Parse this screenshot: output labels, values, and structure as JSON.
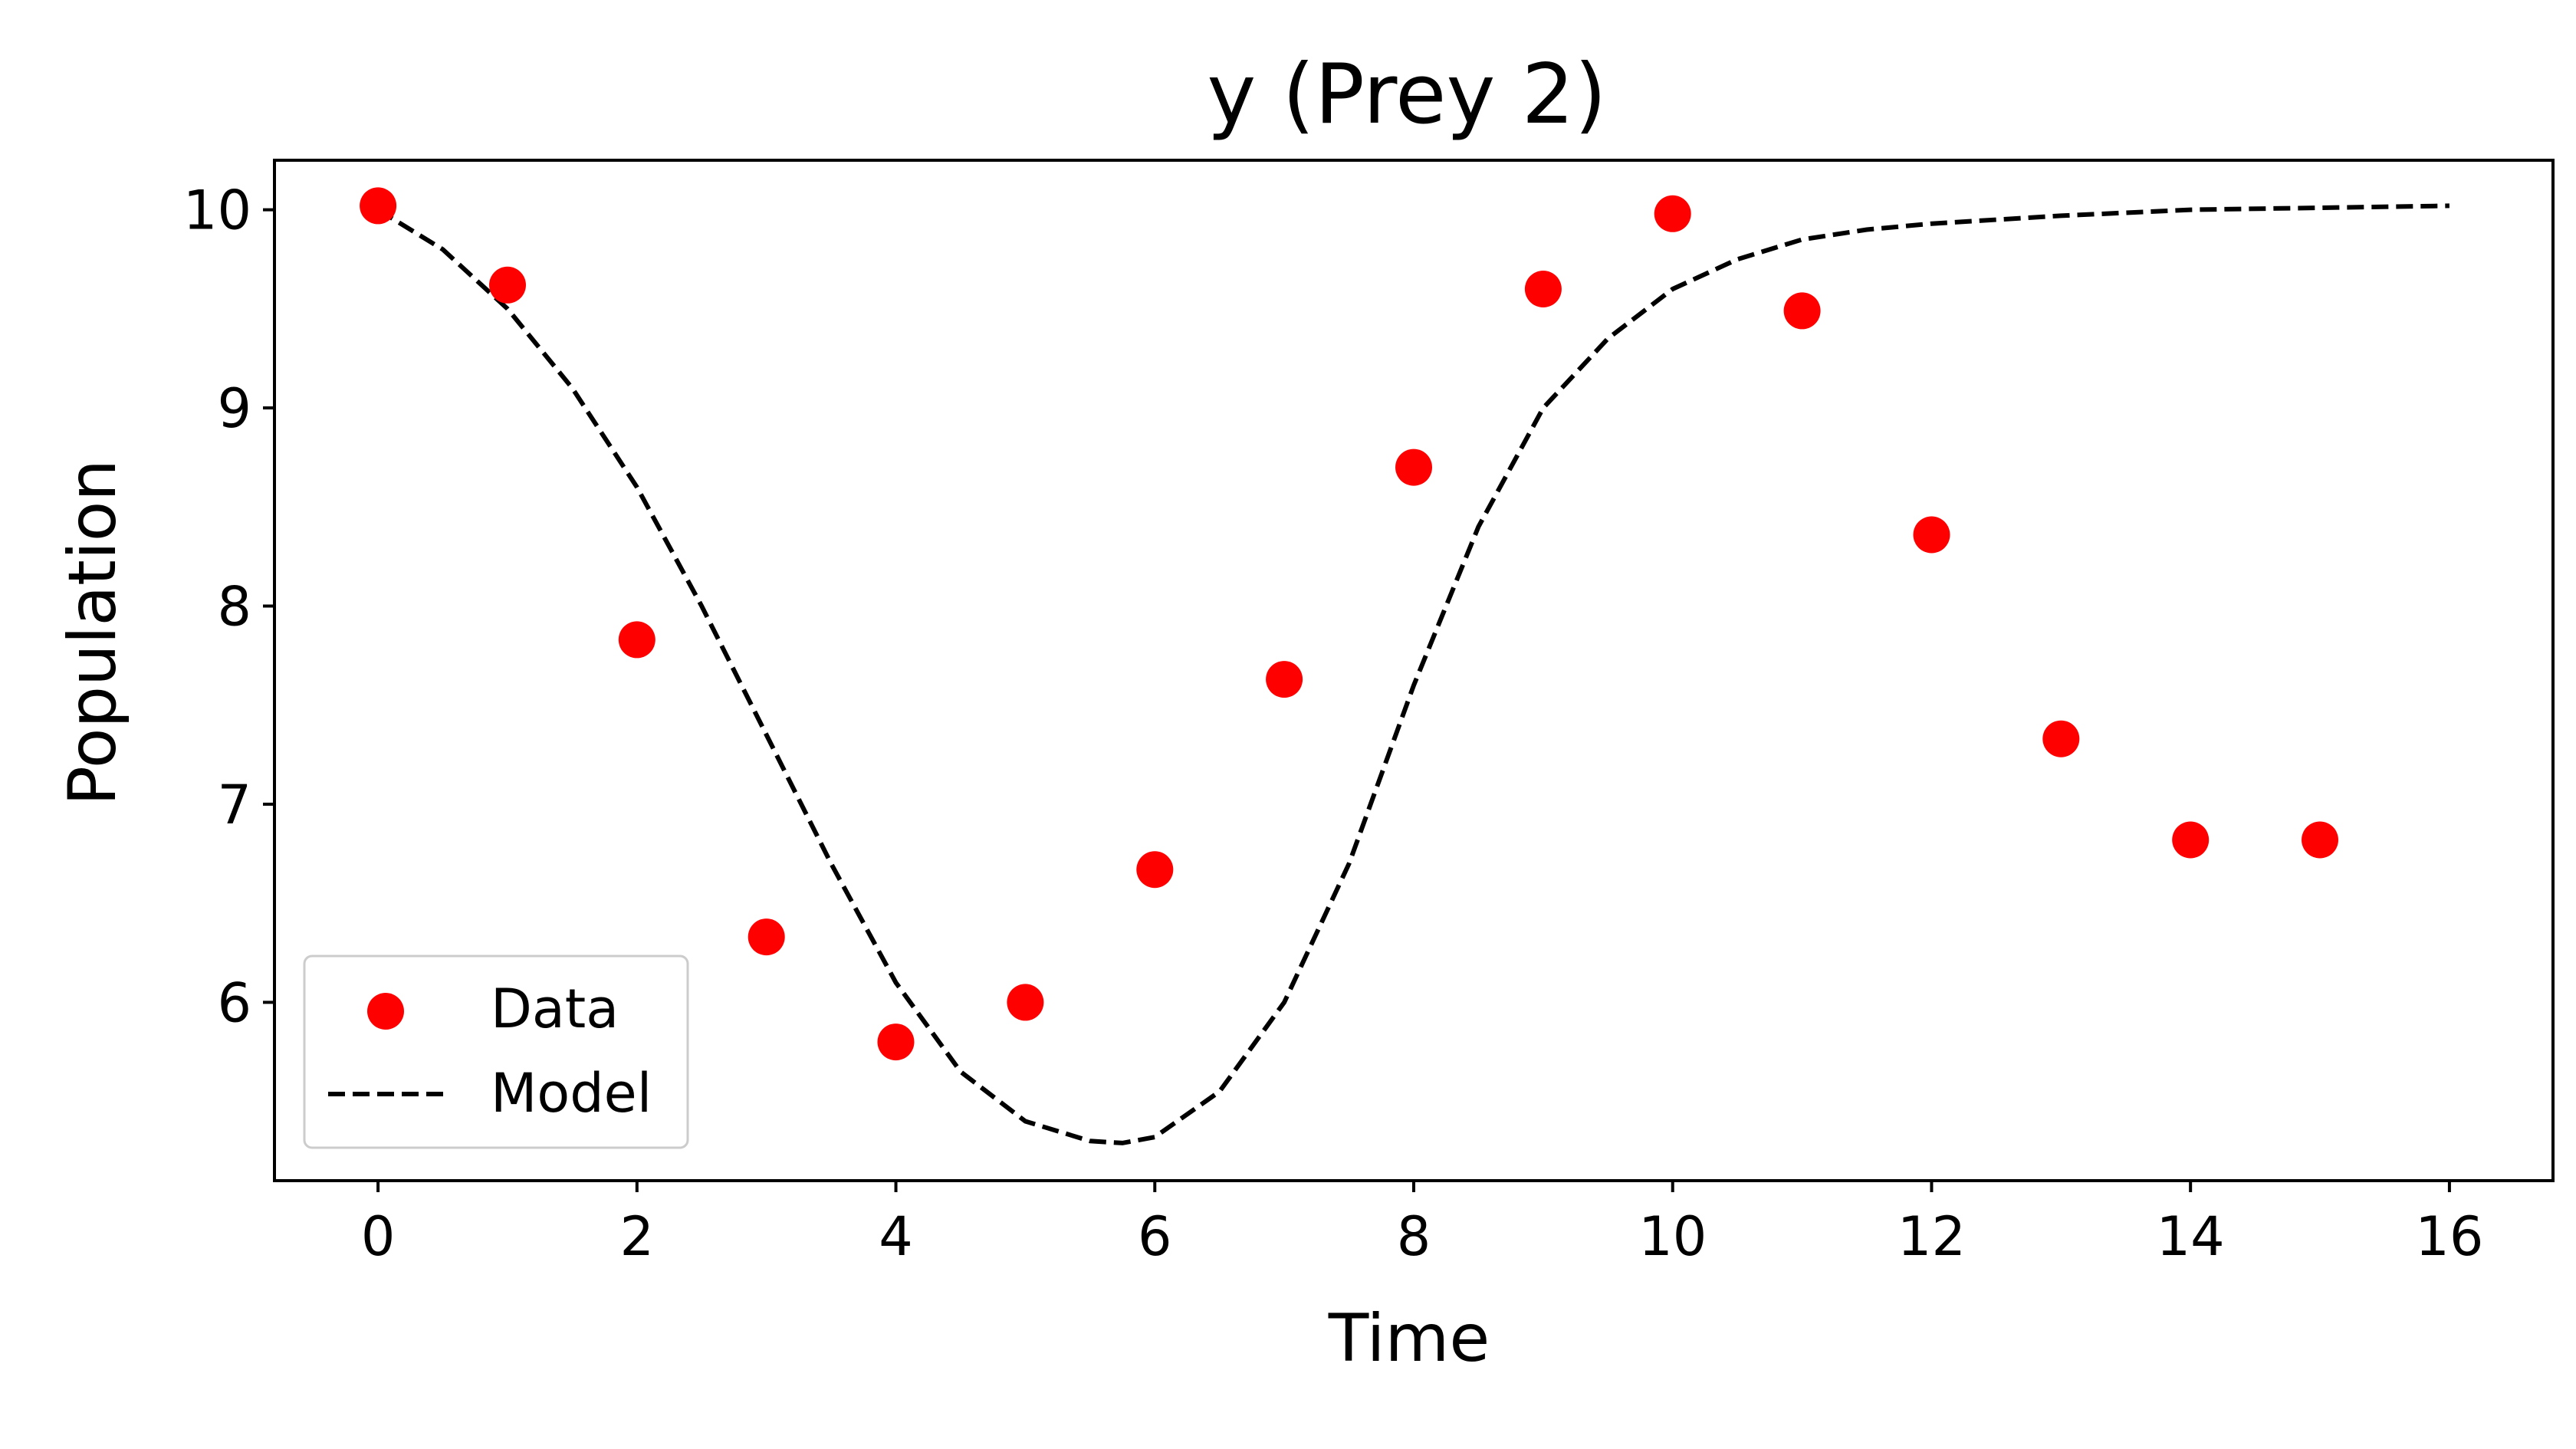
{
  "chart_data": {
    "type": "scatter",
    "title": "y (Prey 2)",
    "xlabel": "Time",
    "ylabel": "Population",
    "xlim": [
      -0.8,
      16.8
    ],
    "ylim": [
      5.1,
      10.25
    ],
    "xticks": [
      0,
      2,
      4,
      6,
      8,
      10,
      12,
      14,
      16
    ],
    "yticks": [
      6,
      7,
      8,
      9,
      10
    ],
    "grid": false,
    "legend_position": "lower-left",
    "series": [
      {
        "name": "Data",
        "kind": "scatter",
        "color": "#ff0000",
        "x": [
          0,
          1,
          2,
          3,
          4,
          5,
          6,
          7,
          8,
          9,
          10,
          11,
          12,
          13,
          14,
          15
        ],
        "y": [
          10.02,
          9.62,
          7.83,
          6.33,
          5.8,
          6.0,
          6.67,
          7.63,
          8.7,
          9.6,
          9.98,
          9.49,
          8.36,
          7.33,
          6.82,
          6.82
        ]
      },
      {
        "name": "Model",
        "kind": "line",
        "style": "dashed",
        "color": "#000000",
        "x": [
          0,
          0.5,
          1,
          1.5,
          2,
          2.5,
          3,
          3.5,
          4,
          4.5,
          5,
          5.5,
          5.75,
          6,
          6.5,
          7,
          7.5,
          8,
          8.5,
          9,
          9.5,
          10,
          10.5,
          11,
          11.5,
          12,
          13,
          14,
          15,
          16
        ],
        "y": [
          10.0,
          9.8,
          9.5,
          9.1,
          8.6,
          8.0,
          7.35,
          6.7,
          6.1,
          5.65,
          5.4,
          5.3,
          5.29,
          5.32,
          5.55,
          6.0,
          6.7,
          7.6,
          8.4,
          9.0,
          9.35,
          9.6,
          9.75,
          9.85,
          9.9,
          9.93,
          9.97,
          10.0,
          10.01,
          10.02
        ]
      }
    ]
  }
}
